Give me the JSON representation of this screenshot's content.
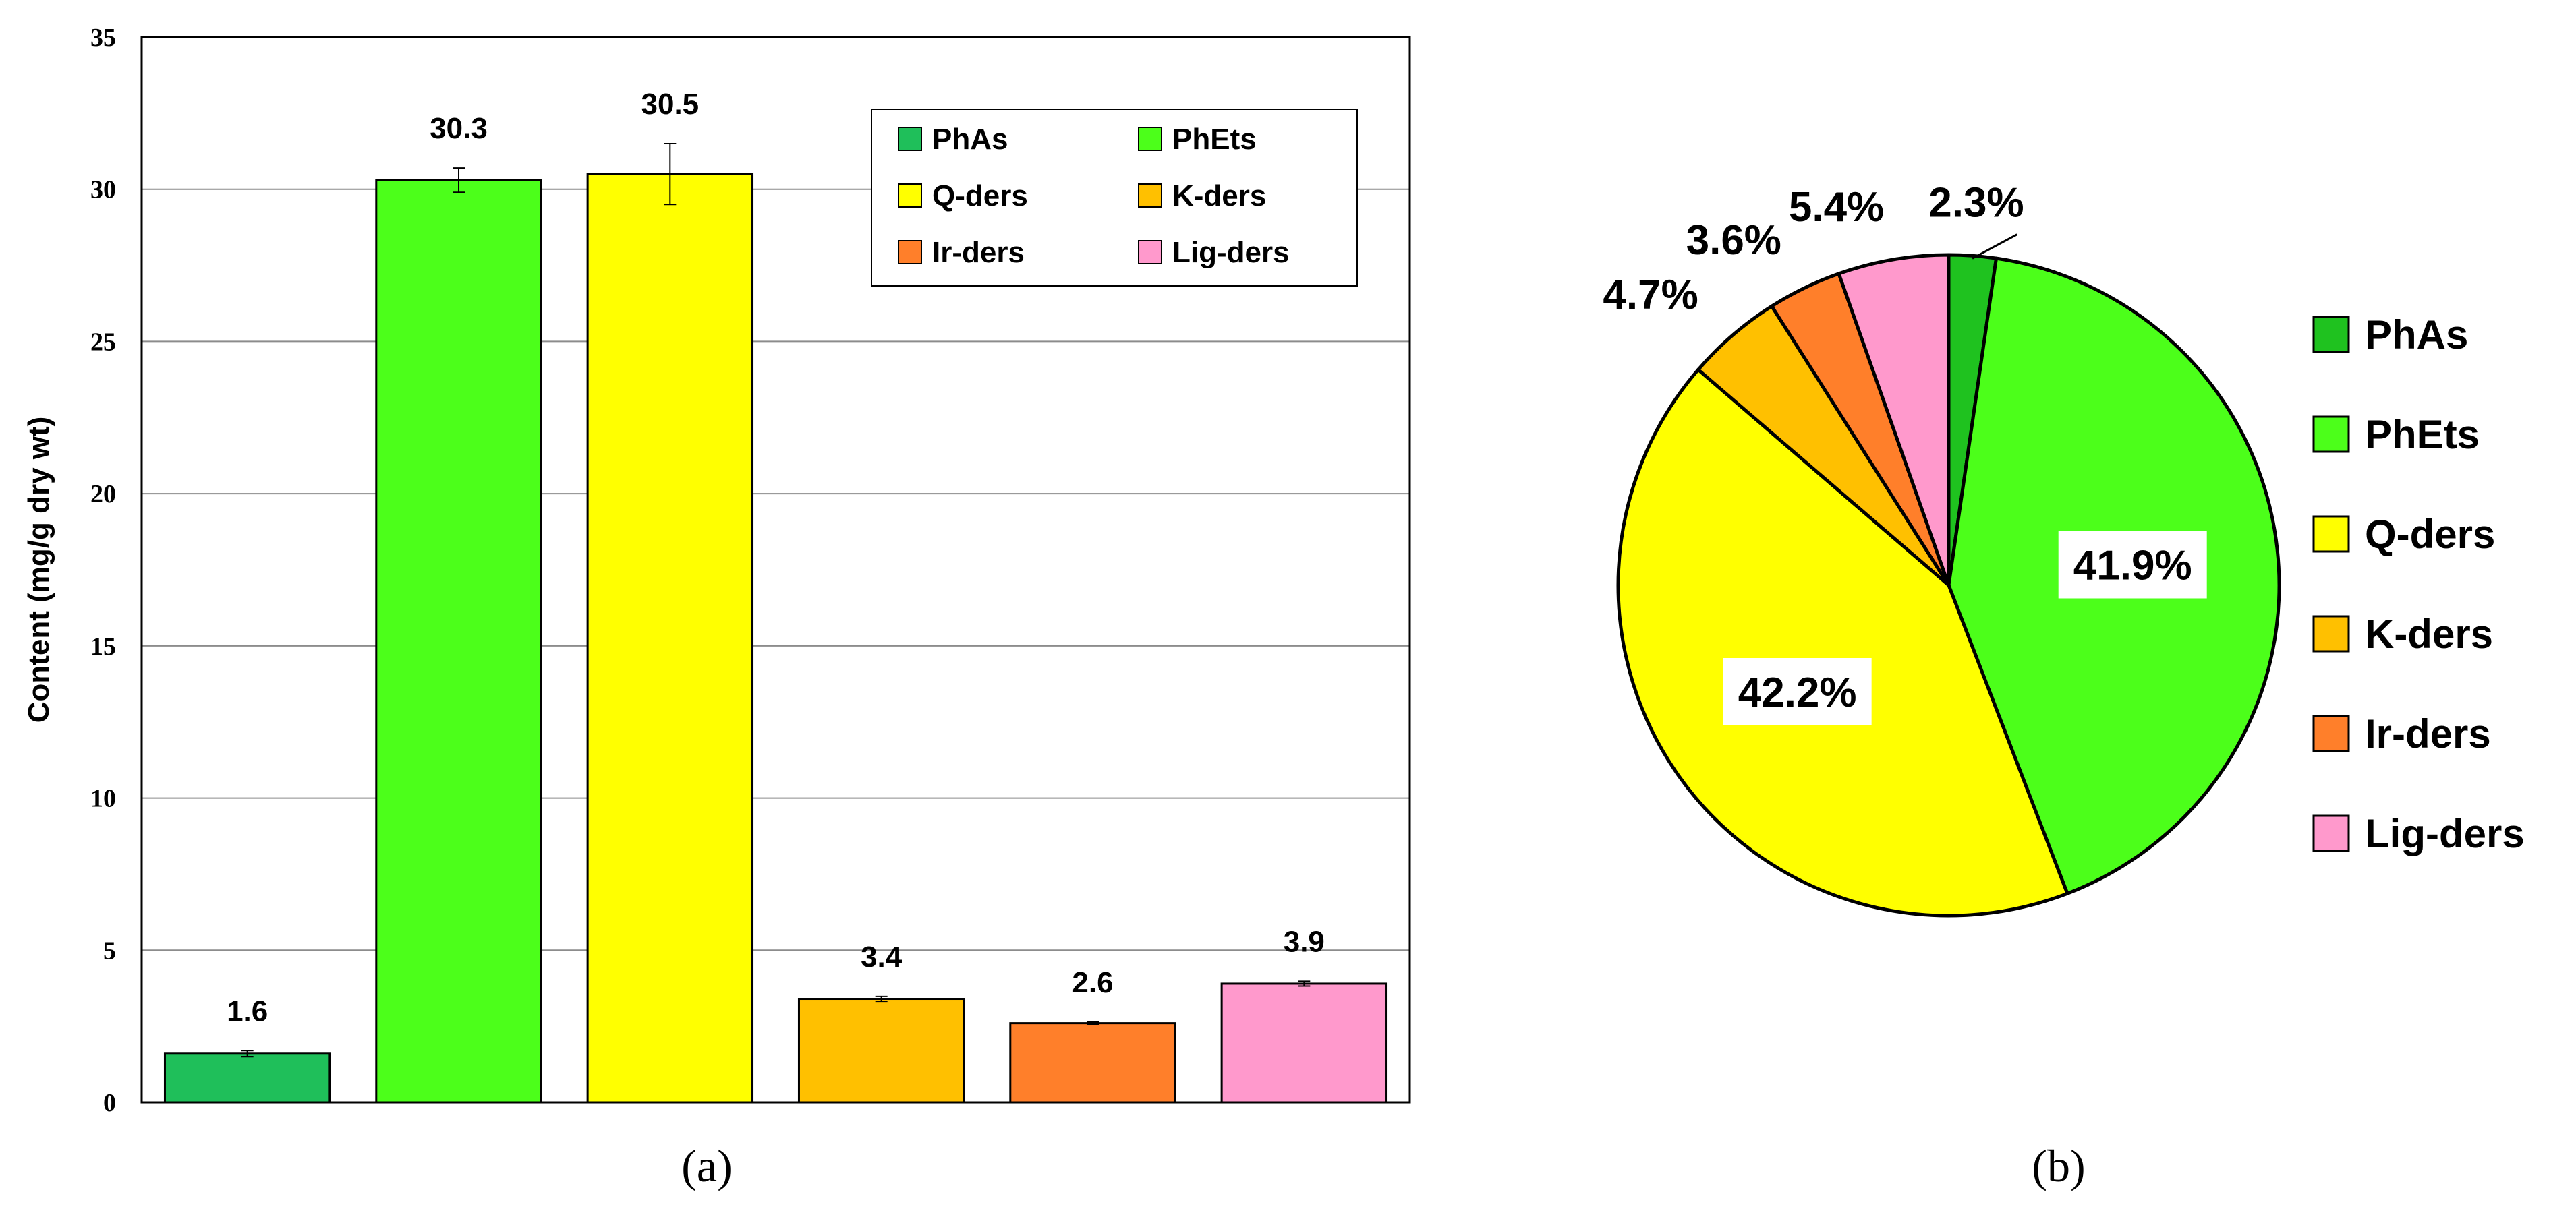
{
  "chart_data": [
    {
      "type": "bar",
      "panel_label": "(a)",
      "ylabel": "Content (mg/g dry wt)",
      "ylim": [
        0,
        35
      ],
      "yticks": [
        0,
        5,
        10,
        15,
        20,
        25,
        30,
        35
      ],
      "grid": true,
      "legend_position": "top-right",
      "categories": [
        "PhAs",
        "PhEts",
        "Q-ders",
        "K-ders",
        "Ir-ders",
        "Lig-ders"
      ],
      "values": [
        1.6,
        30.3,
        30.5,
        3.4,
        2.6,
        3.9
      ],
      "value_labels": [
        "1.6",
        "30.3",
        "30.5",
        "3.4",
        "2.6",
        "3.9"
      ],
      "errors": [
        0.1,
        0.4,
        1.0,
        0.08,
        0.04,
        0.08
      ],
      "colors": [
        "#1fbf5a",
        "#4cff1a",
        "#ffff00",
        "#ffc000",
        "#ff7f2a",
        "#ff99cc"
      ]
    },
    {
      "type": "pie",
      "panel_label": "(b)",
      "legend_position": "right",
      "categories": [
        "PhAs",
        "PhEts",
        "Q-ders",
        "K-ders",
        "Ir-ders",
        "Lig-ders"
      ],
      "values": [
        2.3,
        41.9,
        42.2,
        4.7,
        3.6,
        5.4
      ],
      "value_labels": [
        "2.3%",
        "41.9%",
        "42.2%",
        "4.7%",
        "3.6%",
        "5.4%"
      ],
      "colors": [
        "#1fc21f",
        "#4cff1a",
        "#ffff00",
        "#ffc000",
        "#ff7f2a",
        "#ff99cc"
      ]
    }
  ]
}
